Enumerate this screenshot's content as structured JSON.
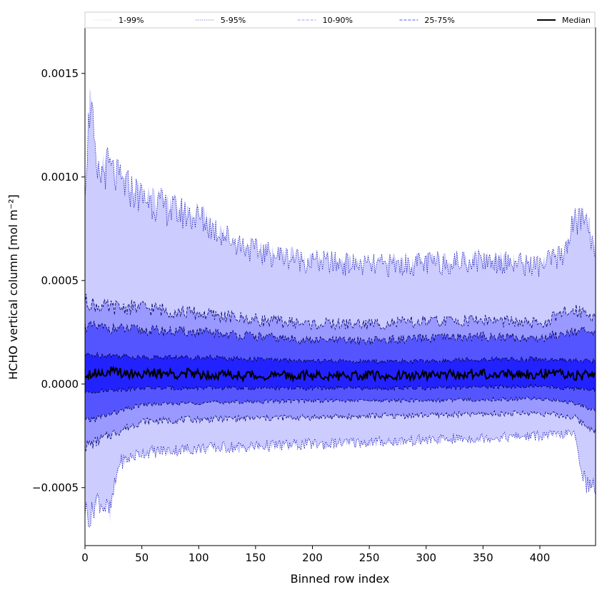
{
  "chart_data": {
    "type": "area",
    "xlabel": "Binned row index",
    "ylabel": "HCHO vertical column [mol m⁻²]",
    "xlim": [
      0,
      449
    ],
    "ylim": [
      -0.00078,
      0.00172
    ],
    "x_ticks": [
      0,
      50,
      100,
      150,
      200,
      250,
      300,
      350,
      400
    ],
    "x_tick_labels": [
      "0",
      "50",
      "100",
      "150",
      "200",
      "250",
      "300",
      "350",
      "400"
    ],
    "y_ticks": [
      -0.0005,
      0.0,
      0.0005,
      0.001,
      0.0015
    ],
    "y_tick_labels": [
      "−0.0005",
      "0.0000",
      "0.0005",
      "0.0010",
      "0.0015"
    ],
    "grid": false,
    "legend_placement": "top, single row above plot",
    "series": [
      {
        "name": "1-99%",
        "color": "#ccccff",
        "line_color": "#ffffff",
        "dash": "1.5,1.5",
        "line_width": 0.6,
        "lower": {
          "x": [
            0,
            5,
            10,
            22,
            30,
            50,
            100,
            150,
            200,
            250,
            300,
            350,
            400,
            430,
            440,
            449
          ],
          "y": [
            -0.0006,
            -0.00065,
            -0.00055,
            -0.00062,
            -0.00038,
            -0.00033,
            -0.00031,
            -0.0003,
            -0.00029,
            -0.00028,
            -0.00027,
            -0.00026,
            -0.00025,
            -0.00024,
            -0.00048,
            -0.0005
          ]
        },
        "upper": {
          "x": [
            0,
            5,
            10,
            20,
            30,
            50,
            75,
            100,
            125,
            150,
            200,
            250,
            300,
            350,
            400,
            420,
            430,
            440,
            449
          ],
          "y": [
            0.00098,
            0.0014,
            0.00098,
            0.00105,
            0.00098,
            0.0009,
            0.00084,
            0.0008,
            0.00071,
            0.00064,
            0.00059,
            0.00057,
            0.00058,
            0.0006,
            0.00057,
            0.00062,
            0.00078,
            0.0008,
            0.00064
          ]
        }
      },
      {
        "name": "5-95%",
        "color": "#ccccff",
        "line_color": "#0000aa",
        "dash": "1.5,1.5",
        "line_width": 0.7,
        "lower": {
          "x": [
            0,
            5,
            10,
            22,
            30,
            50,
            100,
            150,
            200,
            250,
            300,
            350,
            400,
            430,
            440,
            449
          ],
          "y": [
            -0.0006,
            -0.00065,
            -0.00055,
            -0.00062,
            -0.00038,
            -0.00033,
            -0.00031,
            -0.0003,
            -0.00029,
            -0.00028,
            -0.00027,
            -0.00026,
            -0.00025,
            -0.00024,
            -0.00048,
            -0.0005
          ]
        },
        "upper": {
          "x": [
            0,
            5,
            10,
            20,
            30,
            50,
            75,
            100,
            125,
            150,
            200,
            250,
            300,
            350,
            400,
            420,
            430,
            440,
            449
          ],
          "y": [
            0.00098,
            0.0014,
            0.00098,
            0.00105,
            0.00098,
            0.0009,
            0.00084,
            0.0008,
            0.00071,
            0.00064,
            0.00059,
            0.00057,
            0.00058,
            0.0006,
            0.00057,
            0.00062,
            0.00078,
            0.0008,
            0.00064
          ]
        }
      },
      {
        "name": "10-90%",
        "color": "#9999ff",
        "line_color": "#000066",
        "dash": "4,2",
        "line_width": 0.8,
        "lower": {
          "x": [
            0,
            10,
            20,
            50,
            100,
            200,
            300,
            400,
            430,
            440,
            449
          ],
          "y": [
            -0.0003,
            -0.00028,
            -0.00025,
            -0.00018,
            -0.00017,
            -0.00016,
            -0.00015,
            -0.00014,
            -0.00016,
            -0.0002,
            -0.00022
          ]
        },
        "upper": {
          "x": [
            0,
            10,
            20,
            50,
            100,
            150,
            200,
            250,
            300,
            350,
            400,
            430,
            440,
            449
          ],
          "y": [
            0.0004,
            0.00038,
            0.00037,
            0.00037,
            0.00034,
            0.00031,
            0.00029,
            0.00029,
            0.0003,
            0.00031,
            0.00029,
            0.00036,
            0.00035,
            0.00032
          ]
        }
      },
      {
        "name": "25-75%",
        "color": "#5555ff",
        "line_color": "#000044",
        "dash": "4,2",
        "line_width": 0.8,
        "lower": {
          "x": [
            0,
            20,
            50,
            100,
            200,
            300,
            400,
            430,
            449
          ],
          "y": [
            -0.00018,
            -0.00015,
            -0.0001,
            -9e-05,
            -8e-05,
            -8e-05,
            -7e-05,
            -9e-05,
            -0.00013
          ]
        },
        "upper": {
          "x": [
            0,
            20,
            50,
            100,
            150,
            200,
            250,
            300,
            350,
            400,
            430,
            449
          ],
          "y": [
            0.00028,
            0.00027,
            0.00026,
            0.00025,
            0.00023,
            0.00021,
            0.00021,
            0.00022,
            0.00023,
            0.00022,
            0.00026,
            0.00024
          ]
        }
      },
      {
        "name": "",
        "color": "#2222ff",
        "line_color": "#000033",
        "dash": "4,2",
        "line_width": 0.8,
        "lower": {
          "x": [
            0,
            20,
            50,
            100,
            200,
            300,
            400,
            449
          ],
          "y": [
            -4e-05,
            -3e-05,
            -2e-05,
            -2e-05,
            -2e-05,
            -2e-05,
            -1e-05,
            -3e-05
          ]
        },
        "upper": {
          "x": [
            0,
            20,
            50,
            100,
            150,
            200,
            250,
            300,
            350,
            400,
            449
          ],
          "y": [
            0.00014,
            0.00014,
            0.00013,
            0.00013,
            0.00012,
            0.00011,
            0.00011,
            0.00011,
            0.00012,
            0.00012,
            0.00011
          ]
        }
      },
      {
        "name": "Median",
        "color": "#000000",
        "line_color": "#000000",
        "dash": "",
        "line_width": 2,
        "values": {
          "x": [
            0,
            20,
            50,
            100,
            150,
            200,
            250,
            300,
            350,
            400,
            449
          ],
          "y": [
            5e-05,
            6e-05,
            5e-05,
            5e-05,
            4e-05,
            4e-05,
            4e-05,
            4e-05,
            5e-05,
            5e-05,
            4e-05
          ]
        }
      }
    ]
  }
}
